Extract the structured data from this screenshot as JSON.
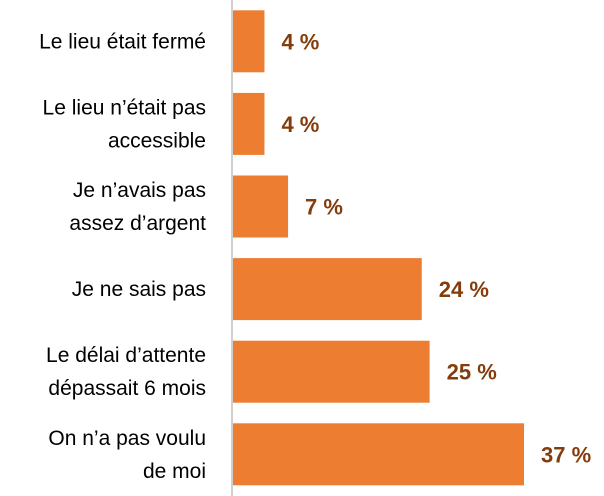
{
  "chart_data": {
    "type": "bar",
    "orientation": "horizontal",
    "categories": [
      [
        "Le lieu était fermé"
      ],
      [
        "Le lieu n’était pas",
        "accessible"
      ],
      [
        "Je n’avais pas",
        "assez d’argent"
      ],
      [
        "Je ne sais pas"
      ],
      [
        "Le délai d’attente",
        "dépassait 6 mois"
      ],
      [
        "On n’a pas voulu",
        "de moi"
      ]
    ],
    "values": [
      4,
      4,
      7,
      24,
      25,
      37
    ],
    "value_labels": [
      "4 %",
      "4 %",
      "7 %",
      "24 %",
      "25 %",
      "37 %"
    ],
    "xlim": [
      0,
      37
    ],
    "grid": false,
    "bar_color": "#ED7D31",
    "label_color": "#843C0C",
    "axis_color": "#BFBFBF"
  }
}
